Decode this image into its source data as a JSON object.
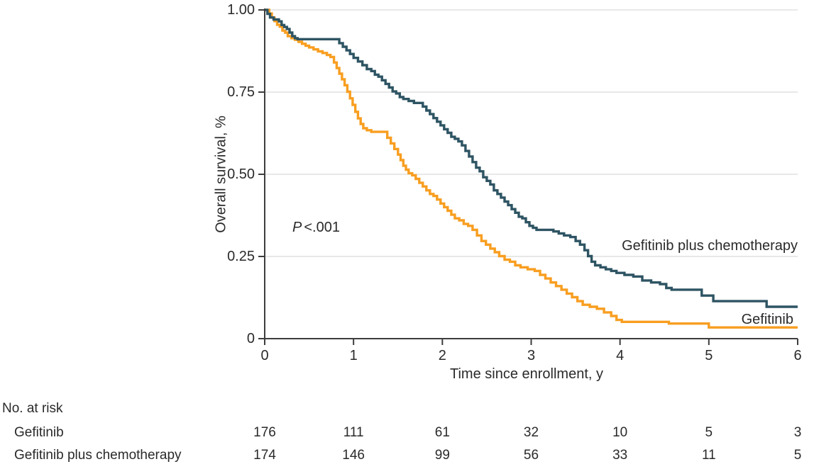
{
  "figure": {
    "p_annotation": {
      "italic": "P",
      "rest": "<.001"
    },
    "risk_table": {
      "header": "No. at risk",
      "rows": [
        {
          "label": "Gefitinib",
          "values": [
            "176",
            "111",
            "61",
            "32",
            "10",
            "5",
            "3"
          ]
        },
        {
          "label": "Gefitinib plus chemotherapy",
          "values": [
            "174",
            "146",
            "99",
            "56",
            "33",
            "11",
            "5"
          ]
        }
      ]
    }
  },
  "chart_data": {
    "type": "line",
    "subtype": "kaplan-meier-step",
    "title": "",
    "xlabel": "Time since enrollment, y",
    "ylabel": "Overall survival, %",
    "xlim": [
      0,
      6
    ],
    "ylim": [
      0,
      1
    ],
    "grid": "horizontal",
    "grid_color": "#DADADA",
    "axis_color": "#3D3D3D",
    "annotation": {
      "text": "P <.001",
      "x": 0.31,
      "y": 0.34
    },
    "x_ticks": [
      {
        "v": 0,
        "label": "0"
      },
      {
        "v": 1,
        "label": "1"
      },
      {
        "v": 2,
        "label": "2"
      },
      {
        "v": 3,
        "label": "3"
      },
      {
        "v": 4,
        "label": "4"
      },
      {
        "v": 5,
        "label": "5"
      },
      {
        "v": 6,
        "label": "6"
      }
    ],
    "y_ticks": [
      {
        "v": 1.0,
        "label": "1.00"
      },
      {
        "v": 0.75,
        "label": "0.75"
      },
      {
        "v": 0.5,
        "label": "0.50"
      },
      {
        "v": 0.25,
        "label": "0.25"
      },
      {
        "v": 0,
        "label": "0"
      }
    ],
    "series": [
      {
        "name": "Gefitinib",
        "color": "#F89E20",
        "points": [
          [
            0,
            1.0
          ],
          [
            0.05,
            0.989
          ],
          [
            0.08,
            0.977
          ],
          [
            0.11,
            0.966
          ],
          [
            0.14,
            0.955
          ],
          [
            0.17,
            0.949
          ],
          [
            0.2,
            0.937
          ],
          [
            0.23,
            0.931
          ],
          [
            0.26,
            0.92
          ],
          [
            0.3,
            0.914
          ],
          [
            0.34,
            0.909
          ],
          [
            0.38,
            0.903
          ],
          [
            0.42,
            0.897
          ],
          [
            0.46,
            0.891
          ],
          [
            0.5,
            0.886
          ],
          [
            0.55,
            0.88
          ],
          [
            0.6,
            0.874
          ],
          [
            0.65,
            0.869
          ],
          [
            0.7,
            0.863
          ],
          [
            0.74,
            0.857
          ],
          [
            0.78,
            0.84
          ],
          [
            0.81,
            0.823
          ],
          [
            0.84,
            0.806
          ],
          [
            0.87,
            0.789
          ],
          [
            0.9,
            0.771
          ],
          [
            0.93,
            0.751
          ],
          [
            0.96,
            0.731
          ],
          [
            0.99,
            0.711
          ],
          [
            1.02,
            0.69
          ],
          [
            1.05,
            0.67
          ],
          [
            1.08,
            0.653
          ],
          [
            1.11,
            0.64
          ],
          [
            1.15,
            0.634
          ],
          [
            1.2,
            0.629
          ],
          [
            1.38,
            0.611
          ],
          [
            1.42,
            0.594
          ],
          [
            1.46,
            0.577
          ],
          [
            1.5,
            0.56
          ],
          [
            1.53,
            0.543
          ],
          [
            1.56,
            0.526
          ],
          [
            1.59,
            0.514
          ],
          [
            1.62,
            0.503
          ],
          [
            1.66,
            0.497
          ],
          [
            1.7,
            0.486
          ],
          [
            1.74,
            0.474
          ],
          [
            1.78,
            0.463
          ],
          [
            1.82,
            0.451
          ],
          [
            1.86,
            0.44
          ],
          [
            1.9,
            0.434
          ],
          [
            1.94,
            0.423
          ],
          [
            1.98,
            0.411
          ],
          [
            2.02,
            0.4
          ],
          [
            2.06,
            0.389
          ],
          [
            2.1,
            0.377
          ],
          [
            2.14,
            0.366
          ],
          [
            2.19,
            0.36
          ],
          [
            2.24,
            0.349
          ],
          [
            2.29,
            0.343
          ],
          [
            2.34,
            0.331
          ],
          [
            2.39,
            0.314
          ],
          [
            2.44,
            0.297
          ],
          [
            2.49,
            0.286
          ],
          [
            2.54,
            0.274
          ],
          [
            2.59,
            0.263
          ],
          [
            2.64,
            0.251
          ],
          [
            2.7,
            0.24
          ],
          [
            2.76,
            0.234
          ],
          [
            2.82,
            0.223
          ],
          [
            2.88,
            0.217
          ],
          [
            2.96,
            0.211
          ],
          [
            3.04,
            0.206
          ],
          [
            3.1,
            0.194
          ],
          [
            3.16,
            0.183
          ],
          [
            3.22,
            0.171
          ],
          [
            3.28,
            0.16
          ],
          [
            3.34,
            0.149
          ],
          [
            3.4,
            0.137
          ],
          [
            3.46,
            0.126
          ],
          [
            3.52,
            0.114
          ],
          [
            3.58,
            0.103
          ],
          [
            3.66,
            0.097
          ],
          [
            3.74,
            0.091
          ],
          [
            3.82,
            0.08
          ],
          [
            3.9,
            0.069
          ],
          [
            3.96,
            0.057
          ],
          [
            4.02,
            0.051
          ],
          [
            4.55,
            0.046
          ],
          [
            5.0,
            0.034
          ],
          [
            6.0,
            0.034
          ]
        ]
      },
      {
        "name": "Gefitinib plus chemotherapy",
        "color": "#2E5463",
        "points": [
          [
            0,
            1.0
          ],
          [
            0.03,
            0.988
          ],
          [
            0.06,
            0.977
          ],
          [
            0.1,
            0.971
          ],
          [
            0.16,
            0.965
          ],
          [
            0.19,
            0.954
          ],
          [
            0.22,
            0.948
          ],
          [
            0.25,
            0.942
          ],
          [
            0.28,
            0.931
          ],
          [
            0.31,
            0.92
          ],
          [
            0.34,
            0.914
          ],
          [
            0.37,
            0.911
          ],
          [
            0.84,
            0.899
          ],
          [
            0.88,
            0.888
          ],
          [
            0.92,
            0.877
          ],
          [
            0.96,
            0.866
          ],
          [
            1.0,
            0.854
          ],
          [
            1.05,
            0.843
          ],
          [
            1.1,
            0.832
          ],
          [
            1.15,
            0.82
          ],
          [
            1.2,
            0.814
          ],
          [
            1.24,
            0.803
          ],
          [
            1.28,
            0.797
          ],
          [
            1.32,
            0.786
          ],
          [
            1.36,
            0.775
          ],
          [
            1.4,
            0.764
          ],
          [
            1.44,
            0.752
          ],
          [
            1.48,
            0.746
          ],
          [
            1.52,
            0.735
          ],
          [
            1.56,
            0.729
          ],
          [
            1.62,
            0.723
          ],
          [
            1.68,
            0.717
          ],
          [
            1.78,
            0.706
          ],
          [
            1.82,
            0.694
          ],
          [
            1.86,
            0.683
          ],
          [
            1.9,
            0.671
          ],
          [
            1.94,
            0.66
          ],
          [
            1.98,
            0.649
          ],
          [
            2.02,
            0.637
          ],
          [
            2.06,
            0.626
          ],
          [
            2.1,
            0.614
          ],
          [
            2.14,
            0.608
          ],
          [
            2.18,
            0.6
          ],
          [
            2.22,
            0.588
          ],
          [
            2.26,
            0.571
          ],
          [
            2.3,
            0.554
          ],
          [
            2.34,
            0.537
          ],
          [
            2.38,
            0.52
          ],
          [
            2.42,
            0.509
          ],
          [
            2.46,
            0.491
          ],
          [
            2.5,
            0.48
          ],
          [
            2.54,
            0.469
          ],
          [
            2.58,
            0.451
          ],
          [
            2.62,
            0.44
          ],
          [
            2.66,
            0.429
          ],
          [
            2.7,
            0.417
          ],
          [
            2.74,
            0.406
          ],
          [
            2.78,
            0.394
          ],
          [
            2.82,
            0.383
          ],
          [
            2.86,
            0.371
          ],
          [
            2.9,
            0.366
          ],
          [
            2.94,
            0.354
          ],
          [
            2.98,
            0.343
          ],
          [
            3.02,
            0.337
          ],
          [
            3.06,
            0.331
          ],
          [
            3.25,
            0.326
          ],
          [
            3.31,
            0.32
          ],
          [
            3.37,
            0.314
          ],
          [
            3.44,
            0.309
          ],
          [
            3.5,
            0.297
          ],
          [
            3.55,
            0.286
          ],
          [
            3.6,
            0.269
          ],
          [
            3.64,
            0.251
          ],
          [
            3.68,
            0.234
          ],
          [
            3.72,
            0.223
          ],
          [
            3.78,
            0.217
          ],
          [
            3.84,
            0.211
          ],
          [
            3.9,
            0.206
          ],
          [
            3.96,
            0.2
          ],
          [
            4.05,
            0.194
          ],
          [
            4.15,
            0.189
          ],
          [
            4.25,
            0.177
          ],
          [
            4.35,
            0.171
          ],
          [
            4.45,
            0.166
          ],
          [
            4.52,
            0.154
          ],
          [
            4.58,
            0.149
          ],
          [
            4.92,
            0.131
          ],
          [
            5.05,
            0.114
          ],
          [
            5.65,
            0.097
          ],
          [
            6.0,
            0.097
          ]
        ]
      }
    ]
  }
}
